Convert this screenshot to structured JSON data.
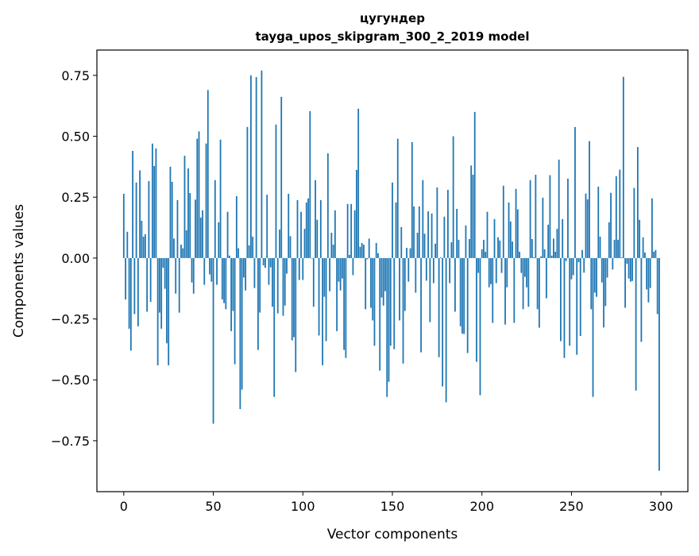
{
  "chart_data": {
    "type": "bar",
    "title": "цугундер",
    "subtitle": "tayga_upos_skipgram_300_2_2019 model",
    "xlabel": "Vector components",
    "ylabel": "Components values",
    "xlim": [
      -15,
      315
    ],
    "ylim": [
      -0.959,
      0.854
    ],
    "xticks": [
      0,
      50,
      100,
      150,
      200,
      250,
      300
    ],
    "xtick_labels": [
      "0",
      "50",
      "100",
      "150",
      "200",
      "250",
      "300"
    ],
    "yticks": [
      0.75,
      0.5,
      0.25,
      0.0,
      -0.25,
      -0.5,
      -0.75
    ],
    "ytick_labels": [
      "0.75",
      "0.50",
      "0.25",
      "0.00",
      "−0.25",
      "−0.50",
      "−0.75"
    ],
    "grid": false,
    "bar_color": "#1f77b4",
    "values": [
      0.264,
      -0.17,
      0.108,
      -0.29,
      -0.38,
      0.44,
      -0.23,
      0.31,
      -0.28,
      0.36,
      0.153,
      0.088,
      0.098,
      -0.22,
      0.316,
      -0.18,
      0.47,
      0.378,
      0.45,
      -0.44,
      -0.224,
      -0.29,
      -0.04,
      -0.126,
      -0.35,
      -0.44,
      0.375,
      0.313,
      0.08,
      -0.146,
      0.238,
      -0.224,
      0.055,
      0.04,
      0.42,
      0.114,
      0.368,
      0.267,
      -0.1,
      -0.146,
      0.24,
      0.49,
      0.52,
      0.166,
      0.196,
      -0.11,
      0.47,
      0.69,
      -0.067,
      -0.097,
      -0.68,
      0.32,
      -0.11,
      0.147,
      0.486,
      -0.17,
      -0.185,
      -0.21,
      0.19,
      0.01,
      -0.3,
      -0.217,
      -0.436,
      0.254,
      0.04,
      -0.62,
      -0.54,
      -0.08,
      -0.133,
      0.538,
      0.052,
      0.75,
      0.088,
      -0.123,
      0.743,
      -0.377,
      -0.224,
      0.77,
      -0.03,
      -0.04,
      0.26,
      -0.11,
      -0.038,
      -0.2,
      -0.57,
      0.548,
      -0.227,
      0.117,
      0.662,
      -0.237,
      -0.195,
      -0.064,
      0.264,
      0.09,
      -0.338,
      -0.325,
      -0.468,
      0.238,
      -0.09,
      0.19,
      -0.09,
      0.12,
      0.228,
      0.245,
      0.603,
      -0.002,
      -0.2,
      0.32,
      0.157,
      -0.318,
      0.238,
      -0.44,
      -0.159,
      -0.341,
      0.43,
      -0.136,
      0.104,
      0.055,
      0.196,
      -0.3,
      -0.097,
      -0.133,
      -0.084,
      -0.377,
      -0.41,
      0.222,
      0.013,
      0.222,
      -0.07,
      0.196,
      0.362,
      0.613,
      0.046,
      0.062,
      0.055,
      -0.21,
      -0.005,
      0.08,
      -0.204,
      -0.256,
      -0.36,
      0.062,
      0.02,
      -0.462,
      -0.162,
      -0.195,
      -0.136,
      -0.57,
      -0.508,
      -0.36,
      0.31,
      -0.374,
      0.228,
      0.49,
      -0.256,
      0.127,
      -0.433,
      -0.217,
      0.042,
      -0.097,
      0.04,
      0.476,
      0.212,
      -0.142,
      0.104,
      0.212,
      -0.387,
      0.32,
      0.1,
      -0.093,
      0.192,
      -0.263,
      0.183,
      -0.103,
      0.059,
      0.29,
      -0.407,
      0.003,
      -0.527,
      0.17,
      -0.592,
      0.28,
      -0.103,
      0.065,
      0.5,
      -0.22,
      0.202,
      0.075,
      -0.28,
      -0.31,
      -0.312,
      0.134,
      -0.39,
      0.078,
      0.38,
      0.342,
      0.6,
      -0.426,
      -0.061,
      -0.563,
      0.036,
      0.075,
      0.026,
      0.19,
      -0.12,
      -0.107,
      -0.266,
      0.16,
      -0.103,
      0.085,
      0.072,
      -0.061,
      0.297,
      -0.273,
      -0.12,
      0.228,
      0.15,
      0.068,
      -0.266,
      0.284,
      0.2,
      0.026,
      -0.061,
      -0.21,
      -0.077,
      -0.12,
      -0.2,
      0.32,
      0.078,
      0.003,
      0.342,
      -0.21,
      -0.286,
      0.007,
      0.248,
      0.036,
      -0.165,
      0.137,
      0.34,
      0.01,
      0.08,
      0.026,
      0.12,
      0.404,
      -0.341,
      0.16,
      -0.41,
      -0.012,
      0.326,
      -0.36,
      -0.087,
      -0.07,
      0.538,
      -0.397,
      -0.017,
      -0.32,
      0.033,
      -0.06,
      0.265,
      0.241,
      0.48,
      -0.21,
      -0.57,
      -0.142,
      -0.159,
      0.293,
      0.088,
      -0.1,
      -0.285,
      -0.197,
      -0.08,
      0.147,
      0.268,
      -0.047,
      0.075,
      0.336,
      0.075,
      0.363,
      0.003,
      0.744,
      -0.204,
      -0.023,
      -0.084,
      -0.097,
      -0.094,
      0.288,
      -0.544,
      0.456,
      0.157,
      -0.344,
      0.085,
      0.023,
      -0.129,
      -0.182,
      -0.123,
      0.245,
      0.026,
      0.033,
      -0.23,
      -0.873
    ]
  }
}
